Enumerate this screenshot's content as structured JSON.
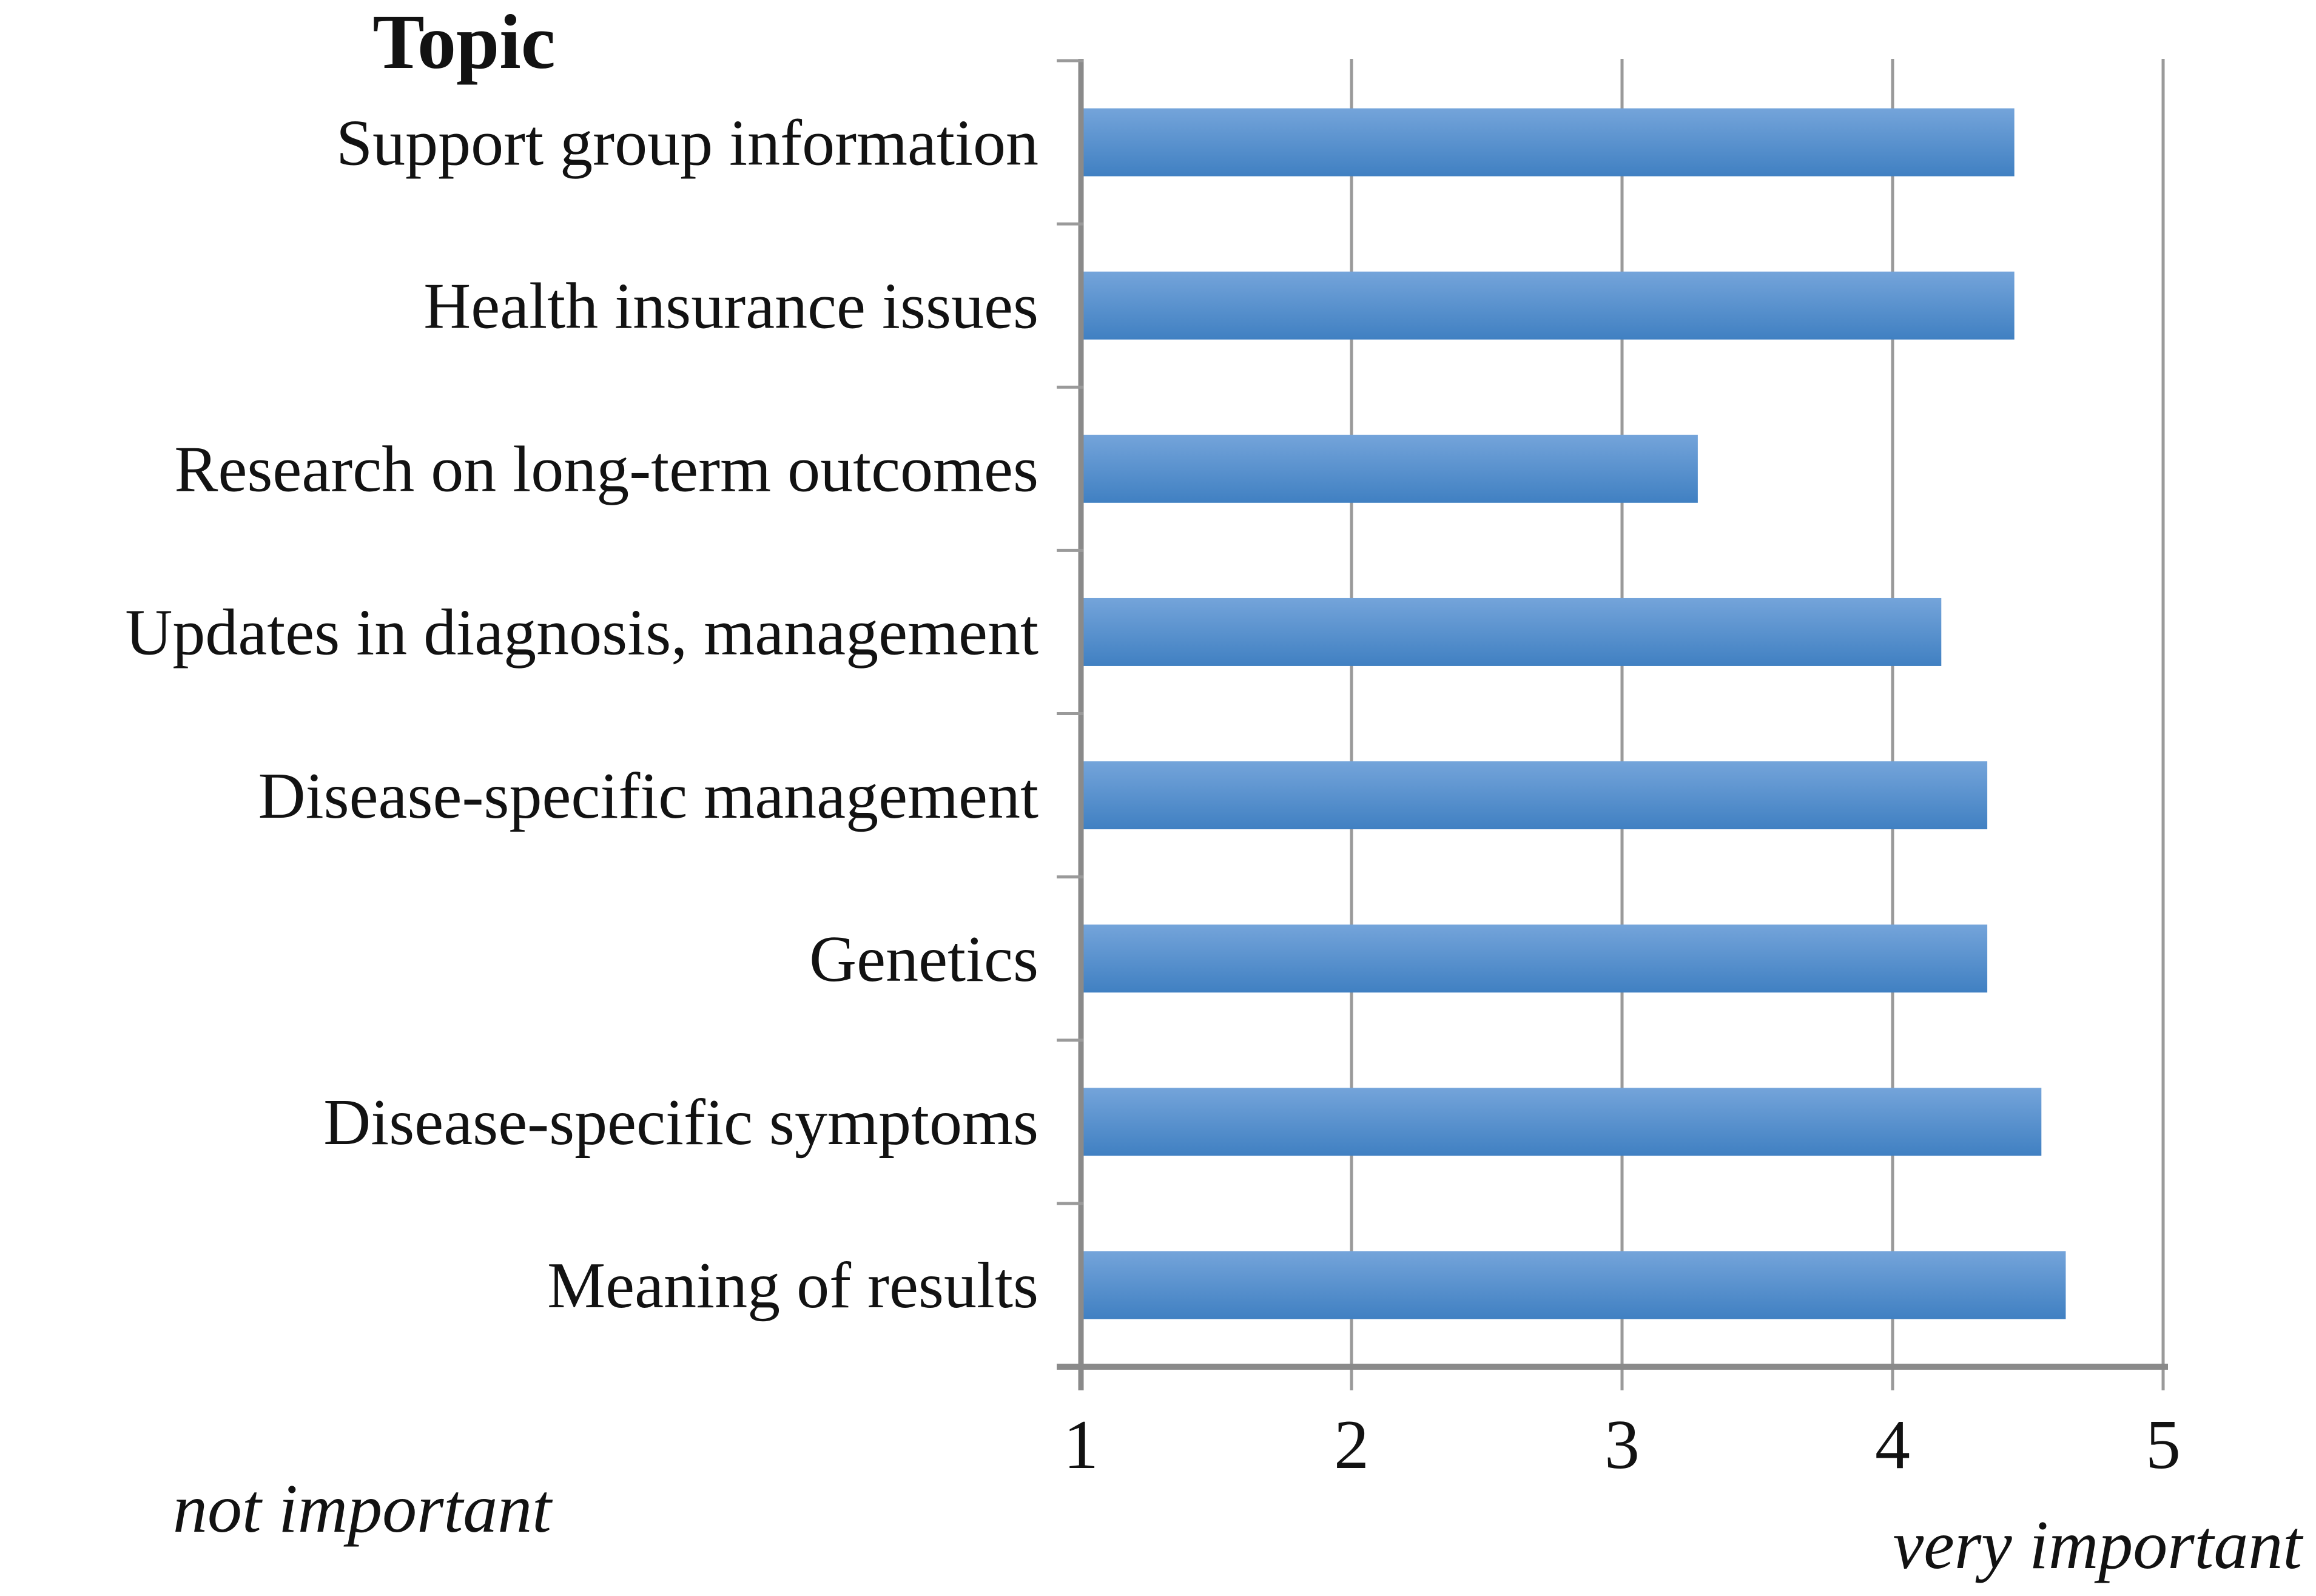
{
  "chart_data": {
    "type": "bar",
    "orientation": "horizontal",
    "title": "Topic",
    "categories": [
      "Support group information",
      "Health insurance issues",
      "Research on long-term outcomes",
      "Updates in diagnosis, management",
      "Disease-specific management",
      "Genetics",
      "Disease-specific symptoms",
      "Meaning of results"
    ],
    "values": [
      4.45,
      4.45,
      3.28,
      4.18,
      4.35,
      4.35,
      4.55,
      4.64
    ],
    "x_ticks": [
      "1",
      "2",
      "3",
      "4",
      "5"
    ],
    "xlim": [
      1,
      5
    ],
    "grid": "vertical-gridlines",
    "legend_position": "none",
    "scale_notes": {
      "min_label": "not important",
      "max_label": "very important"
    },
    "colors": {
      "bar_top": "#74A4DA",
      "bar_bottom": "#4080C2",
      "gridline": "#9A9A9A",
      "axis": "#8A8A8A",
      "text": "#121212"
    }
  }
}
